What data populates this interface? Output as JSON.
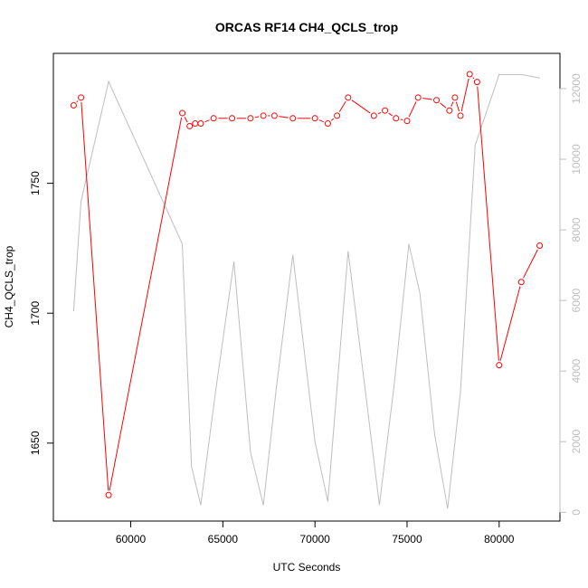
{
  "chart_data": {
    "type": "line",
    "title": "ORCAS RF14 CH4_QCLS_trop",
    "xlabel": "UTC Seconds",
    "ylabel": "CH4_QCLS_trop",
    "xlim": [
      55800,
      83300
    ],
    "ylim": [
      1620,
      1800
    ],
    "y2lim": [
      -250,
      13000
    ],
    "x_ticks": [
      60000,
      65000,
      70000,
      75000,
      80000
    ],
    "x_tick_labels": [
      "60000",
      "65000",
      "70000",
      "75000",
      "80000"
    ],
    "y_ticks": [
      1650,
      1700,
      1750
    ],
    "y_tick_labels": [
      "1650",
      "1700",
      "1750"
    ],
    "y2_ticks": [
      0,
      2000,
      4000,
      6000,
      8000,
      10000,
      12000
    ],
    "y2_tick_labels": [
      "0",
      "2000",
      "4000",
      "6000",
      "8000",
      "10000",
      "12000"
    ],
    "grid": false,
    "colors": {
      "ch4": "#ff0000",
      "altitude": "#bebebe",
      "axis": "#000000",
      "axis2": "#bebebe"
    },
    "series": [
      {
        "axis": "left",
        "style": "line-with-points",
        "x": [
          56900,
          57300,
          58800,
          62800,
          63200,
          63500,
          63800,
          64500,
          65500,
          66500,
          67200,
          67800,
          68800,
          70000,
          70700,
          71200,
          71800,
          73200,
          73800,
          74400,
          75000,
          75600,
          76600,
          77300,
          77600,
          77900,
          78400,
          78800,
          80000,
          81200,
          82200
        ],
        "y": [
          1780,
          1783,
          1630,
          1777,
          1772,
          1773,
          1773,
          1775,
          1775,
          1775,
          1776,
          1776,
          1775,
          1775,
          1773,
          1776,
          1783,
          1776,
          1778,
          1775,
          1774,
          1783,
          1782,
          1778,
          1783,
          1776,
          1792,
          1789,
          1680,
          1712,
          1726
        ]
      },
      {
        "axis": "right",
        "style": "line",
        "x": [
          56900,
          57300,
          58800,
          62800,
          63300,
          63800,
          64600,
          65600,
          66500,
          67200,
          67900,
          68800,
          70000,
          70700,
          71800,
          73500,
          74300,
          75100,
          75700,
          76500,
          77200,
          77900,
          78700,
          80000,
          81200,
          82200
        ],
        "y": [
          5700,
          8800,
          12200,
          7600,
          1300,
          200,
          3400,
          7100,
          1700,
          200,
          3500,
          7300,
          2000,
          300,
          7400,
          200,
          3600,
          7600,
          6200,
          2200,
          100,
          3400,
          10400,
          12400,
          12400,
          12300
        ]
      }
    ]
  }
}
